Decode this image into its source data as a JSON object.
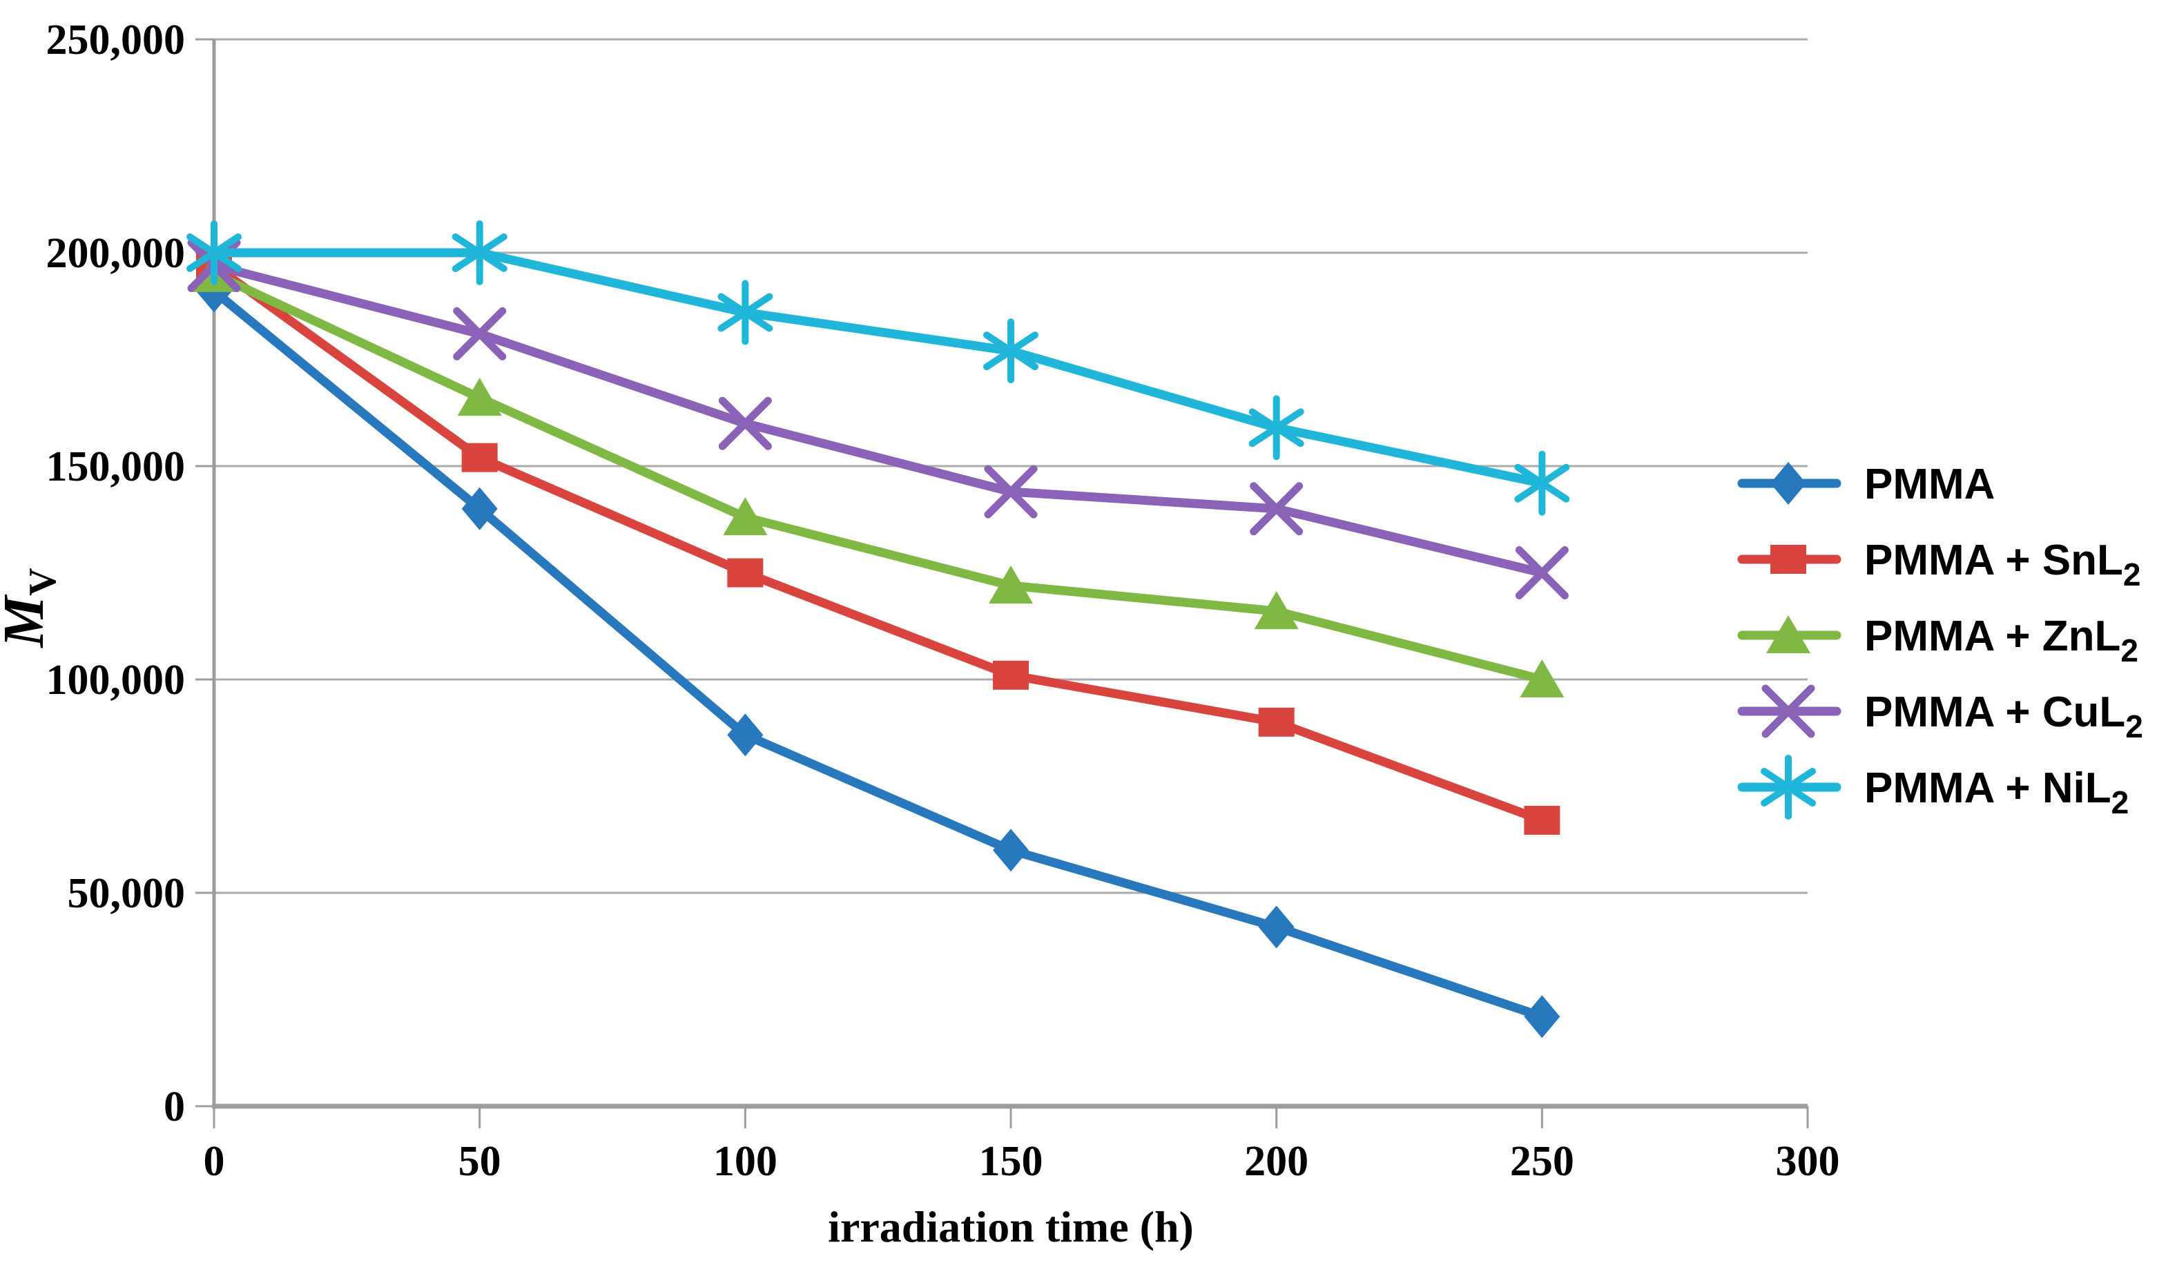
{
  "chart_data": {
    "type": "line",
    "title": "",
    "xlabel": "irradiation time (h)",
    "ylabel": {
      "symbol": "M",
      "subscript": "V",
      "overline": true
    },
    "xlim": [
      0,
      300
    ],
    "ylim": [
      0,
      250000
    ],
    "grid": "horizontal",
    "legend_position": "right",
    "x_ticks": {
      "values": [
        0,
        50,
        100,
        150,
        200,
        250,
        300
      ],
      "labels": [
        "0",
        "50",
        "100",
        "150",
        "200",
        "250",
        "300"
      ]
    },
    "y_ticks": {
      "values": [
        0,
        50000,
        100000,
        150000,
        200000,
        250000
      ],
      "labels": [
        "0",
        "50,000",
        "100,000",
        "150,000",
        "200,000",
        "250,000"
      ]
    },
    "x": [
      0,
      50,
      100,
      150,
      200,
      250
    ],
    "series": [
      {
        "label_main": "PMMA",
        "label_sub": "",
        "marker": "diamond",
        "color": "#2878BE",
        "values": [
          191000,
          140000,
          87000,
          60000,
          42000,
          21000
        ]
      },
      {
        "label_main": "PMMA + SnL",
        "label_sub": "2",
        "marker": "square",
        "color": "#D9453E",
        "values": [
          197000,
          152000,
          125000,
          101000,
          90000,
          67000
        ]
      },
      {
        "label_main": "PMMA + ZnL",
        "label_sub": "2",
        "marker": "triangle",
        "color": "#7FB842",
        "values": [
          195000,
          166000,
          138000,
          122000,
          116000,
          100000
        ]
      },
      {
        "label_main": "PMMA + CuL",
        "label_sub": "2",
        "marker": "x",
        "color": "#8A62B8",
        "values": [
          197000,
          181000,
          160000,
          144000,
          140000,
          125000
        ]
      },
      {
        "label_main": "PMMA + NiL",
        "label_sub": "2",
        "marker": "star",
        "color": "#1FB6DA",
        "values": [
          200000,
          200000,
          186000,
          177000,
          159000,
          146000
        ]
      }
    ],
    "colors": {
      "gridline": "#ABABAB",
      "axis": "#9C9C9C",
      "text": "#000000",
      "background": "#FFFFFF"
    }
  }
}
